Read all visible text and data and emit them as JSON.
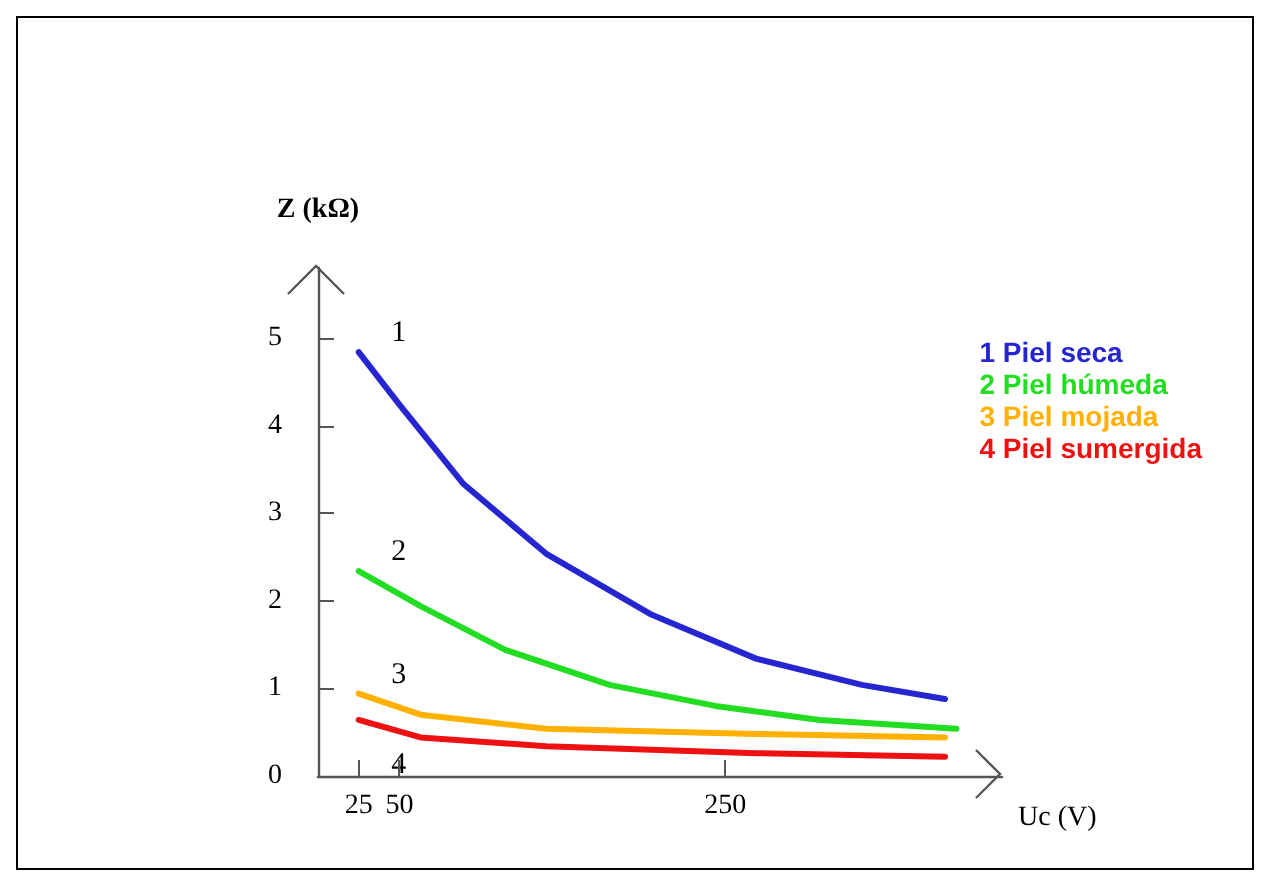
{
  "chart_data": {
    "type": "line",
    "xlabel": "Uc (V)",
    "ylabel": "Z (kΩ)",
    "xlim": [
      0,
      420
    ],
    "xticks": [
      25,
      50,
      250
    ],
    "ylim": [
      0,
      5.8
    ],
    "yticks": [
      0,
      1,
      2,
      3,
      4,
      5
    ],
    "series": [
      {
        "name": "1 Piel seca",
        "color": "#2626d0",
        "x": [
          25,
          50,
          89,
          140,
          205,
          269,
          334,
          385
        ],
        "values": [
          4.84,
          4.24,
          3.34,
          2.54,
          1.84,
          1.34,
          1.04,
          0.88
        ]
      },
      {
        "name": "2 Piel húmeda",
        "color": "#22dd22",
        "x": [
          25,
          63,
          115,
          179,
          244,
          308,
          392
        ],
        "values": [
          2.34,
          1.94,
          1.44,
          1.04,
          0.8,
          0.64,
          0.54
        ]
      },
      {
        "name": "3 Piel mojada",
        "color": "#ffb000",
        "x": [
          25,
          63,
          140,
          269,
          385
        ],
        "values": [
          0.94,
          0.7,
          0.54,
          0.48,
          0.44
        ]
      },
      {
        "name": "4 Piel sumergida",
        "color": "#ee1111",
        "x": [
          25,
          63,
          140,
          269,
          385
        ],
        "values": [
          0.64,
          0.44,
          0.34,
          0.26,
          0.22
        ]
      }
    ],
    "annotations": [
      "1",
      "2",
      "3",
      "4"
    ],
    "legend": "right",
    "grid": false,
    "marker": "none",
    "line_style": "solid"
  }
}
